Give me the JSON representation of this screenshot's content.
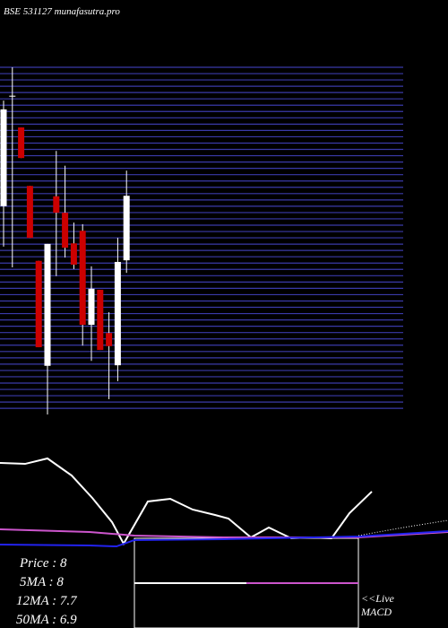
{
  "chart_data": [
    {
      "type": "candlestick",
      "title": "BSE 531127 munafasutra.pro",
      "categories": [
        null,
        null,
        null,
        null,
        null,
        null,
        null,
        null,
        null,
        null,
        null,
        null,
        null,
        null,
        null
      ],
      "open": [
        7.81,
        9.83,
        9.25,
        8.18,
        6.81,
        4.89,
        7.99,
        7.69,
        7.13,
        7.36,
        5.64,
        6.28,
        5.49,
        4.9,
        6.82
      ],
      "high": [
        9.74,
        10.35,
        9.25,
        8.18,
        6.81,
        7.12,
        8.82,
        8.55,
        7.51,
        7.48,
        6.71,
        6.28,
        5.87,
        7.23,
        8.46
      ],
      "low": [
        7.07,
        6.69,
        8.69,
        7.23,
        5.23,
        4.0,
        6.53,
        6.87,
        6.66,
        5.26,
        4.98,
        5.18,
        4.28,
        4.61,
        6.59
      ],
      "close": [
        9.58,
        9.83,
        8.69,
        7.23,
        5.23,
        7.12,
        7.69,
        7.05,
        6.74,
        5.64,
        6.3,
        5.18,
        5.25,
        6.79,
        8.0
      ],
      "up_color": "#ffffff",
      "down_color": "#cc0000",
      "ylim": [
        4,
        10.35
      ],
      "grid_color": "#3a3aa8",
      "annotations": [
        "Price   : 8",
        "5MA : 8",
        "12MA : 7.7",
        "50MA : 6.9"
      ]
    },
    {
      "type": "line",
      "xlim": [
        0,
        500
      ],
      "ylim": [
        0,
        100
      ],
      "series": [
        {
          "color": "#ffffff",
          "x": [
            0,
            28,
            53,
            80,
            103,
            125,
            138,
            165,
            190,
            215,
            240,
            255,
            280,
            300,
            325,
            345,
            370,
            390,
            415
          ],
          "values": [
            85.5,
            84.5,
            90,
            72.7,
            50,
            25.5,
            3.6,
            46.4,
            49.1,
            38.2,
            32.7,
            29.1,
            10,
            20,
            9.1,
            10,
            9.1,
            34.5,
            56.4
          ]
        },
        {
          "color": "#cc55cc",
          "x": [
            0,
            100,
            150,
            250,
            400,
            500
          ],
          "values": [
            18.2,
            15.5,
            11.8,
            10,
            10,
            15.5
          ]
        },
        {
          "color": "#2222ee",
          "x": [
            0,
            100,
            130,
            150,
            250,
            400,
            500
          ],
          "values": [
            2.7,
            1.8,
            0.9,
            7.3,
            8.2,
            10.9,
            16.4
          ]
        },
        {
          "color": "#ffffff",
          "dashed": true,
          "x": [
            400,
            450,
            500
          ],
          "values": [
            11.8,
            20,
            27.3
          ]
        }
      ],
      "annotations": [
        "<<Live",
        "MACD"
      ]
    }
  ]
}
